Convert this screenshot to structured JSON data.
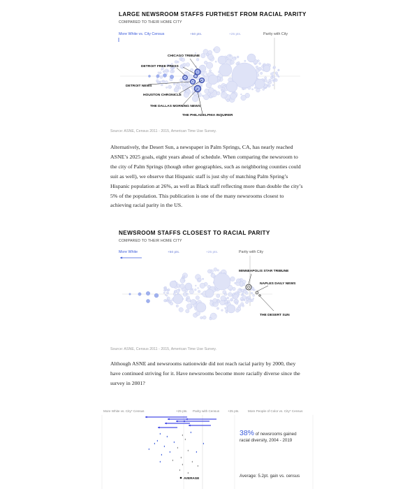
{
  "chart1": {
    "title": "LARGE NEWSROOM STAFFS FURTHEST FROM RACIAL PARITY",
    "subtitle": "COMPARED TO THEIR HOME CITY",
    "axis_left": "More White vs. City Census",
    "tick_50": "+50 pts.",
    "tick_25": "+25 pts.",
    "parity": "Parity with City",
    "labels": {
      "chicago": "CHICAGO TRIBUNE",
      "detroit_fp": "DETROIT FREE PRESS",
      "detroit_news": "DETROIT NEWS",
      "houston": "HOUSTON CHRONICLE",
      "dallas": "THE DALLAS MORNING NEWS",
      "philly": "THE PHILADELPHIA INQUIRER"
    },
    "source": "Source: ASNE, Census 2011 - 2015, American Time Use Survey."
  },
  "paragraph1": "Alternatively, the Desert Sun, a newspaper in Palm Springs, CA, has nearly reached ASNE’s 2025 goals, eight years ahead of schedule. When comparing the newsroom to the city of Palm Springs (though other geographies, such as neighboring counties could suit as well), we observe that Hispanic staff is just shy of matching Palm Spring’s Hispanic population at 26%, as well as Black staff reflecting more than double the city’s 5% of the population. This publication is one of the many newsrooms closest to achieving racial parity in the US.",
  "chart2": {
    "title": "NEWSROOM STAFFS CLOSEST TO RACIAL PARITY",
    "subtitle": "COMPARED TO THEIR HOME CITY",
    "axis_left": "More White",
    "tick_50": "+50 pts.",
    "tick_25": "+25 pts.",
    "parity": "Parity with City",
    "labels": {
      "minneapolis": "MINNEAPOLIS STAR TRIBUNE",
      "naples": "NAPLES DAILY NEWS",
      "desert_sun": "THE DESERT SUN"
    },
    "source": "Source: ASNE, Census 2011 - 2015, American Time Use Survey."
  },
  "paragraph2": "Although ASNE and newsrooms nationwide did not reach racial parity by 2000, they have continued striving for it. Have newsrooms become more racially diverse since the survey in 2001?",
  "chart3": {
    "header_left": "More White vs. City* Census",
    "header_25a": "+25 pts.",
    "header_parity": "Parity with Census",
    "header_25b": "+25 pts.",
    "header_right": "More People of Color vs. City* Census",
    "average_label": "AVERAGE"
  },
  "stat": {
    "pct": "38%",
    "text_a": " of newsrooms gained",
    "text_b": "racial diversity, 2004 - 2019",
    "average": "Average: 5.2pt. gain vs. census"
  },
  "colors": {
    "accent": "#3b5bdb",
    "bubble_fill": "#dfe3f7",
    "bubble_stroke": "#c2c9ee",
    "highlight": "#5a6fd1",
    "dark_blue": "#1a22e0"
  }
}
